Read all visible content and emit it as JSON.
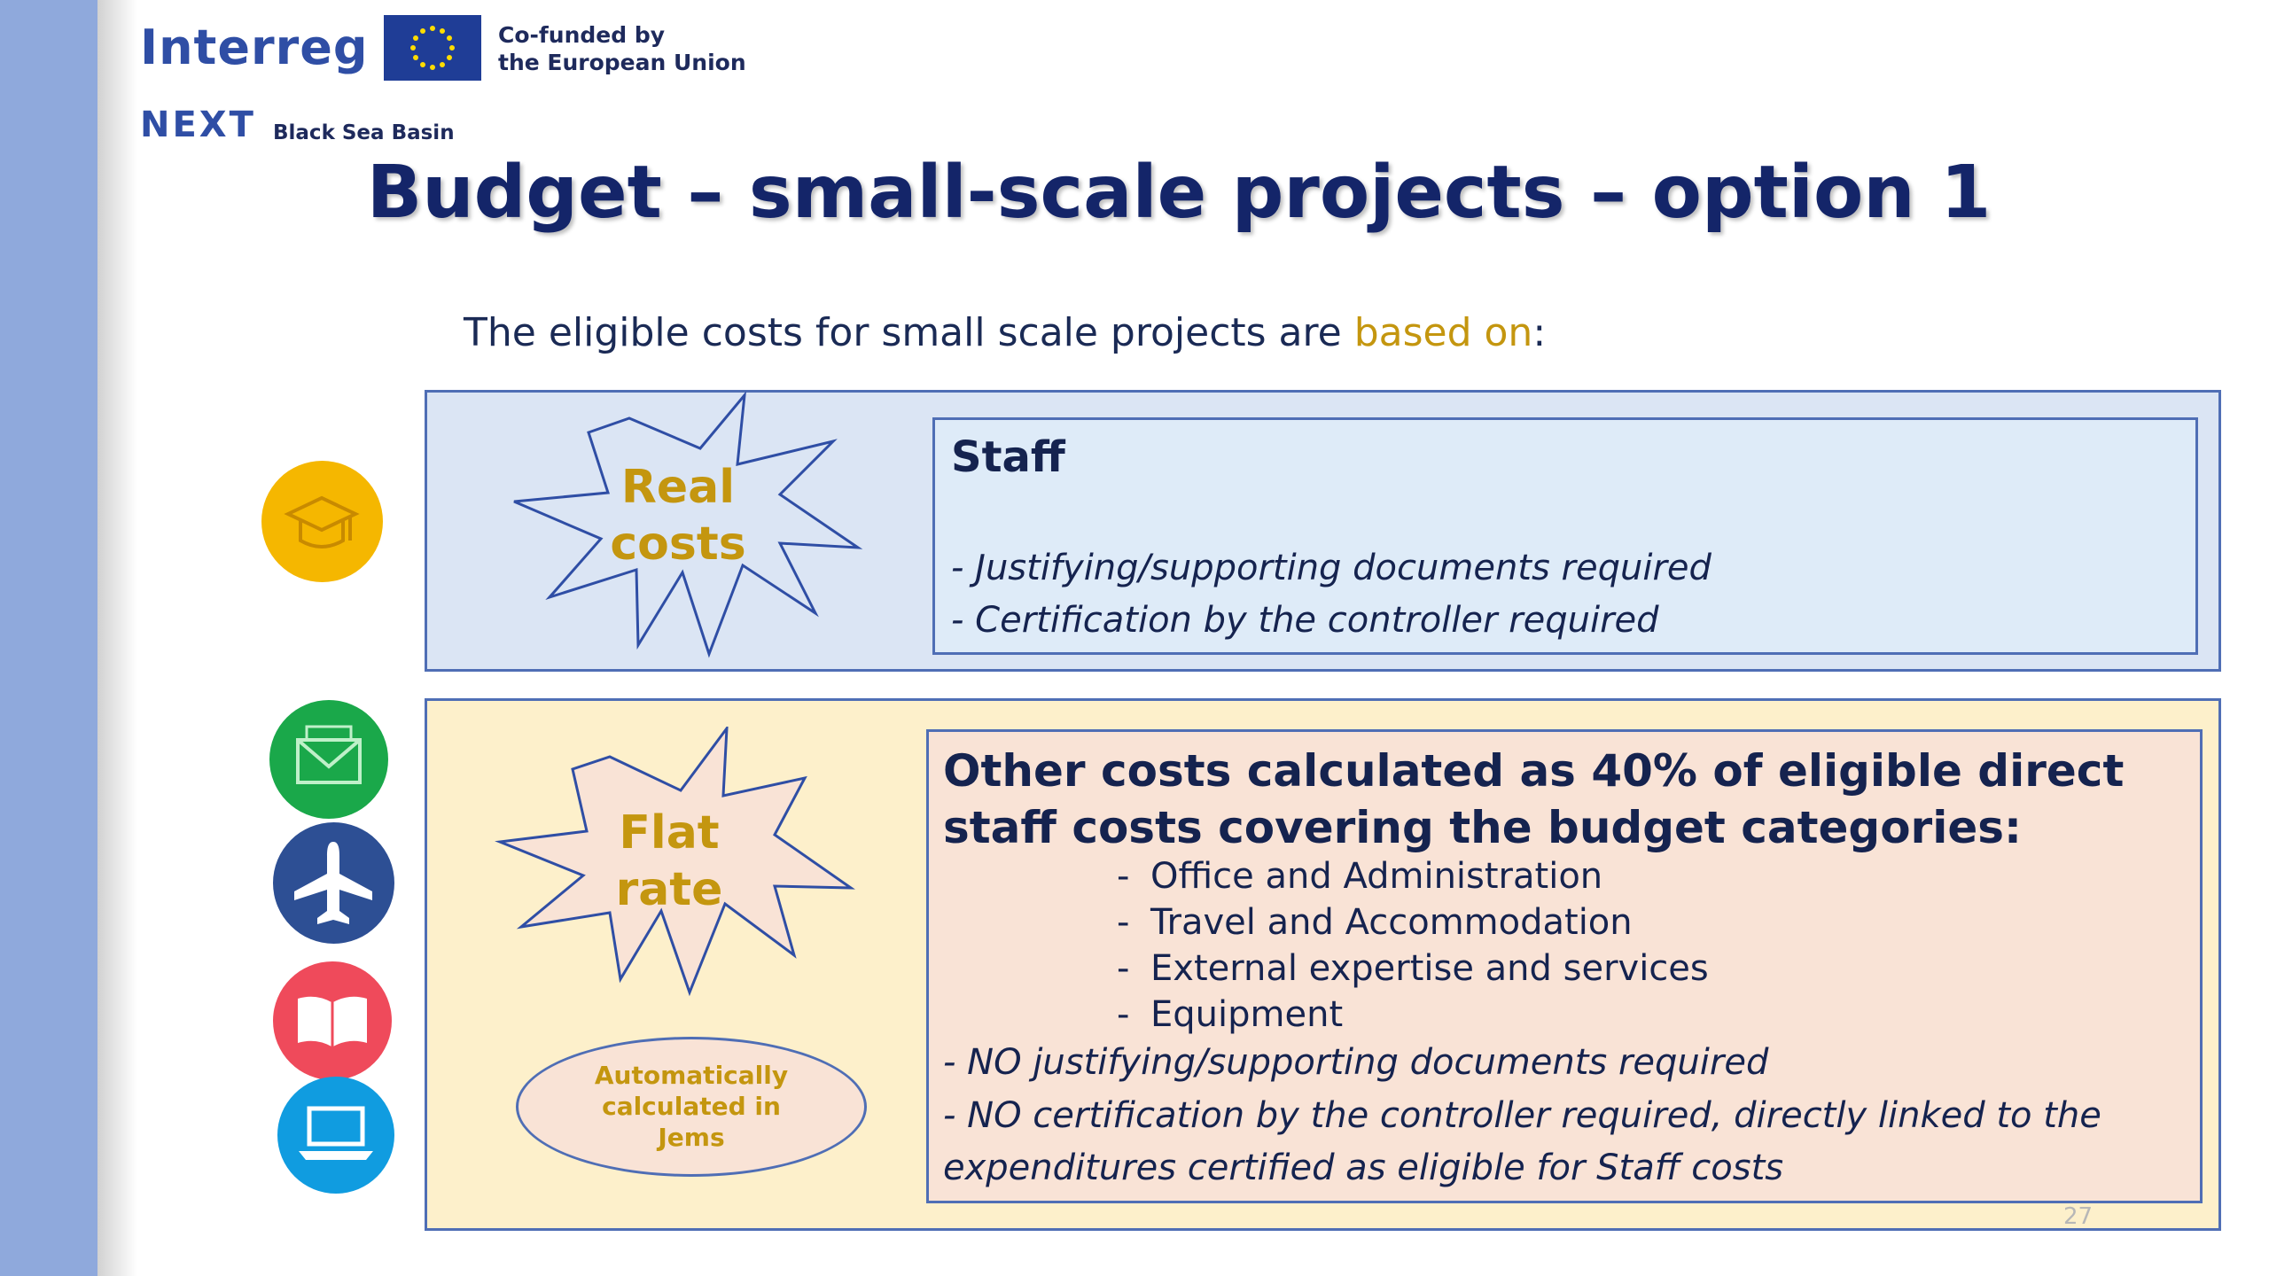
{
  "logo": {
    "interreg": "Interreg",
    "cofunded_line1": "Co-funded by",
    "cofunded_line2": "the European Union",
    "next": "NEXT",
    "region": "Black Sea Basin"
  },
  "slide": {
    "title": "Budget – small-scale projects – option 1",
    "subtitle_prefix": "The eligible costs for small scale projects are ",
    "subtitle_highlight": "based on",
    "subtitle_suffix": ":",
    "page_number": "27"
  },
  "real_costs": {
    "star_line1": "Real",
    "star_line2": "costs",
    "heading": "Staff",
    "notes": [
      "- Justifying/supporting documents required",
      "- Certification by the controller required"
    ]
  },
  "flat_rate": {
    "star_line1": "Flat",
    "star_line2": "rate",
    "auto_line1": "Automatically",
    "auto_line2": "calculated in",
    "auto_line3": "Jems",
    "heading": "Other costs calculated as 40% of eligible direct staff costs covering the budget categories:",
    "categories": [
      "Office and Administration",
      "Travel and Accommodation",
      "External expertise and services",
      "Equipment"
    ],
    "bullet": "-",
    "notes": [
      "- NO justifying/supporting documents required",
      "- NO certification by the controller required, directly linked to the",
      "expenditures certified as eligible for Staff costs"
    ]
  },
  "icons": [
    "graduation-cap-icon",
    "mail-icon",
    "airplane-icon",
    "book-icon",
    "laptop-icon"
  ],
  "colors": {
    "title": "#142569",
    "accent": "#c4960f",
    "sidebar": "#8fa9dc",
    "real_panel": "#dbe5f4",
    "flat_panel": "#fdf0cb"
  }
}
